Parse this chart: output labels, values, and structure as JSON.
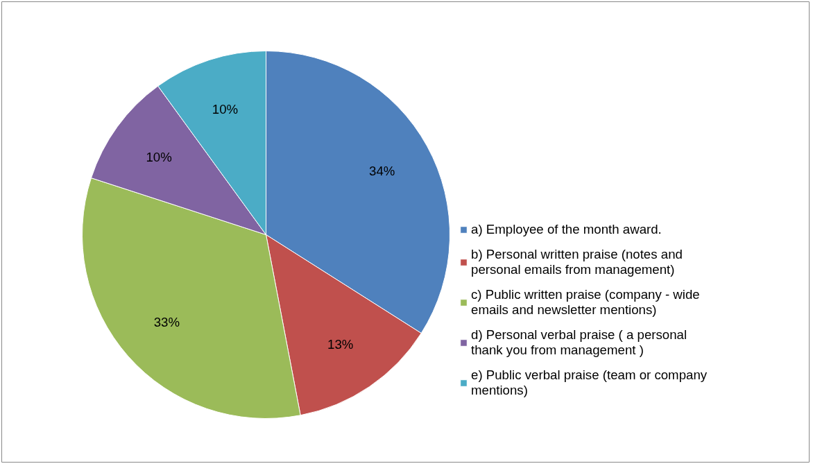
{
  "chart_data": {
    "type": "pie",
    "categories": [
      "a) Employee of the month award.",
      "b) Personal written praise (notes and personal emails from management)",
      "c) Public written praise (company - wide emails and newsletter mentions)",
      "d) Personal verbal praise ( a personal thank you from management )",
      "e) Public verbal praise (team or company mentions)"
    ],
    "values": [
      34,
      13,
      33,
      10,
      10
    ],
    "colors": [
      "#4f81bd",
      "#c0504d",
      "#9bbb59",
      "#8064a2",
      "#4bacc6"
    ],
    "value_labels": [
      "34%",
      "13%",
      "33%",
      "10%",
      "10%"
    ],
    "legend": "right"
  }
}
